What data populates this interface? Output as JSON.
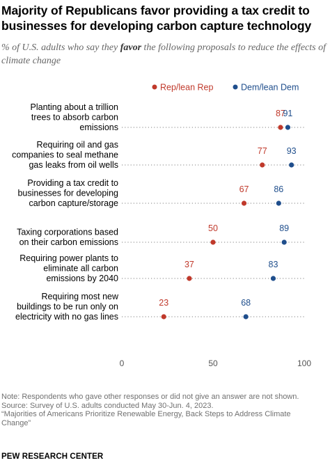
{
  "title": "Majority of Republicans favor providing a tax credit to businesses for developing carbon capture technology",
  "subtitle": {
    "pre": "% of U.S. adults who say they ",
    "em": "favor",
    "post": " the following proposals to reduce the effects of climate change"
  },
  "chart_data": {
    "type": "dot",
    "categories": [
      [
        "Planting about a trillion",
        "trees to absorb carbon",
        "emissions"
      ],
      [
        "Requiring oil and gas",
        "companies to seal methane",
        "gas leaks from oil wells"
      ],
      [
        "Providing a tax credit to",
        "businesses for developing",
        "carbon capture/storage"
      ],
      [
        "Taxing corporations based",
        "on their carbon emissions"
      ],
      [
        "Requiring power plants to",
        "eliminate all carbon",
        "emissions by 2040"
      ],
      [
        "Requiring most new",
        "buildings to be run only on",
        "electricity with no gas lines"
      ]
    ],
    "series": [
      {
        "name": "Rep/lean Rep",
        "color": "#C0392B",
        "values": [
          87,
          77,
          67,
          50,
          37,
          23
        ]
      },
      {
        "name": "Dem/lean Dem",
        "color": "#1F4E8C",
        "values": [
          91,
          93,
          86,
          89,
          83,
          68
        ]
      }
    ],
    "xlim": [
      0,
      100
    ],
    "xticks": [
      0,
      50,
      100
    ],
    "legend_position": "top-right"
  },
  "notes": [
    "Note: Respondents who gave other responses or did not give an answer are not shown.",
    "Source: Survey of U.S. adults conducted May 30-Jun. 4, 2023.",
    "“Majorities of Americans Prioritize Renewable Energy, Back Steps to Address Climate",
    "Change”"
  ],
  "brand": "PEW RESEARCH CENTER"
}
